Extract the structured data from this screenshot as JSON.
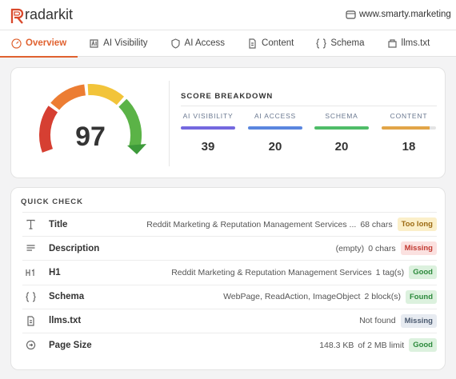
{
  "header": {
    "brand": "radarkit",
    "site": "www.smarty.marketing"
  },
  "tabs": [
    "Overview",
    "AI Visibility",
    "AI Access",
    "Content",
    "Schema",
    "llms.txt"
  ],
  "score": 97,
  "breakdown": {
    "title": "SCORE BREAKDOWN",
    "items": [
      {
        "label": "AI VISIBILITY",
        "value": 39
      },
      {
        "label": "AI ACCESS",
        "value": 20
      },
      {
        "label": "SCHEMA",
        "value": 20
      },
      {
        "label": "CONTENT",
        "value": 18
      }
    ]
  },
  "quick_check": {
    "title": "QUICK CHECK",
    "rows": [
      {
        "label": "Title",
        "detail": "Reddit Marketing & Reputation Management Services ...",
        "meta": "68 chars",
        "status": "Too long"
      },
      {
        "label": "Description",
        "detail": "(empty)",
        "meta": "0 chars",
        "status": "Missing"
      },
      {
        "label": "H1",
        "detail": "Reddit Marketing & Reputation Management Services",
        "meta": "1 tag(s)",
        "status": "Good"
      },
      {
        "label": "Schema",
        "detail": "WebPage, ReadAction, ImageObject",
        "meta": "2 block(s)",
        "status": "Found"
      },
      {
        "label": "llms.txt",
        "detail": "Not found",
        "meta": "",
        "status": "Missing"
      },
      {
        "label": "Page Size",
        "detail": "148.3 KB",
        "meta": "of 2 MB limit",
        "status": "Good"
      }
    ]
  }
}
